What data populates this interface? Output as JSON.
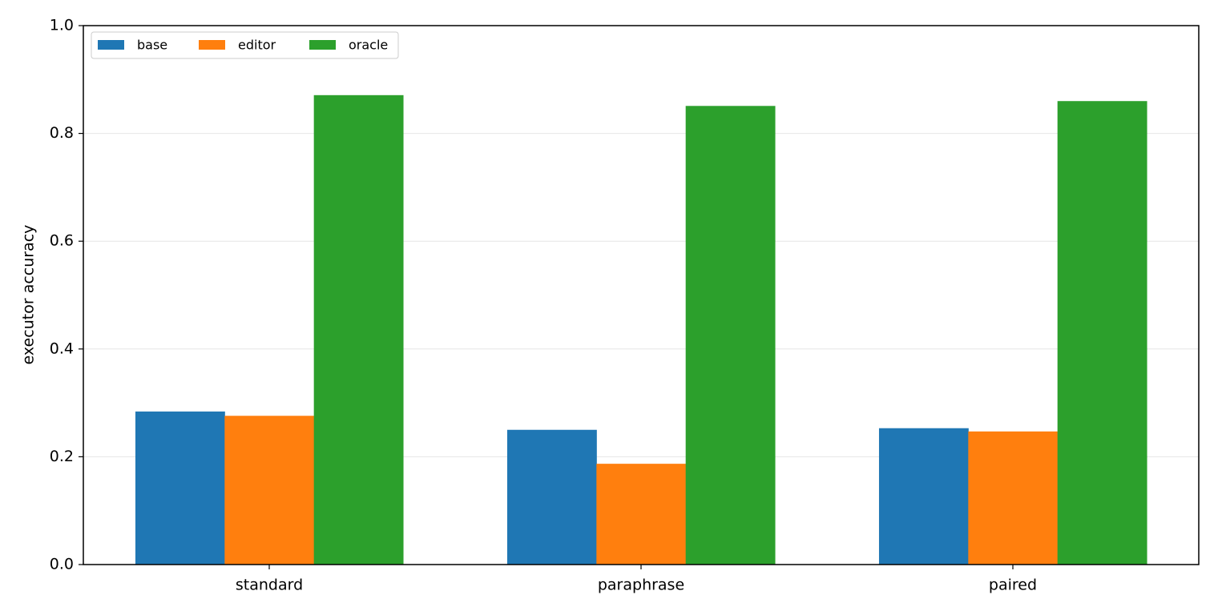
{
  "chart_data": {
    "type": "bar",
    "ylabel": "executor accuracy",
    "categories": [
      "standard",
      "paraphrase",
      "paired"
    ],
    "series": [
      {
        "name": "base",
        "color": "#1f77b4",
        "values": [
          0.284,
          0.25,
          0.253
        ]
      },
      {
        "name": "editor",
        "color": "#ff7f0e",
        "values": [
          0.276,
          0.187,
          0.247
        ]
      },
      {
        "name": "oracle",
        "color": "#2ca02c",
        "values": [
          0.871,
          0.851,
          0.86
        ]
      }
    ],
    "ylim": [
      0,
      1
    ],
    "yticks": [
      {
        "value": 0,
        "label": "0.0"
      },
      0.2,
      0.4,
      0.6,
      0.8,
      {
        "value": 1,
        "label": "1.0"
      }
    ],
    "grid": true,
    "legend": "upper-left"
  }
}
